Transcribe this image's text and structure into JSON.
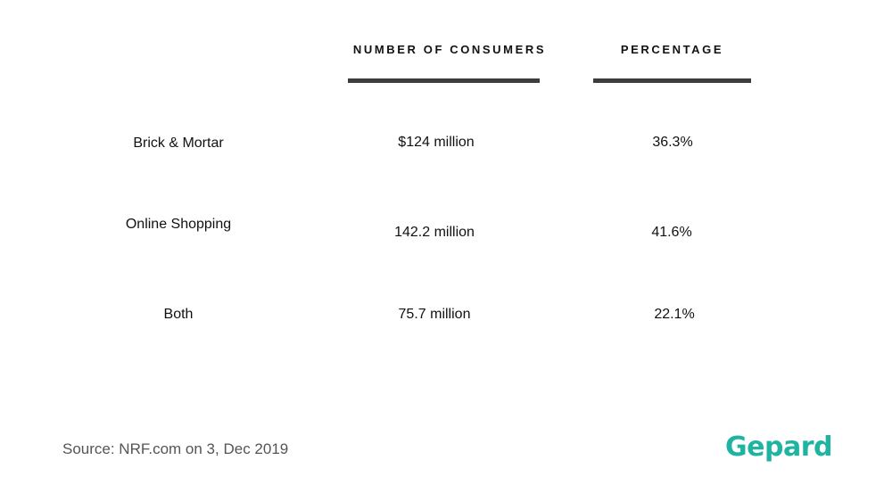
{
  "chart_data": {
    "type": "table",
    "columns": [
      "NUMBER OF CONSUMERS",
      "PERCENTAGE"
    ],
    "rows": [
      {
        "label": "Brick & Mortar",
        "consumers": "$124 million",
        "percentage": "36.3%"
      },
      {
        "label": "Online Shopping",
        "consumers": "142.2 million",
        "percentage": "41.6%"
      },
      {
        "label": "Both",
        "consumers": "75.7 million",
        "percentage": "22.1%"
      }
    ]
  },
  "source": "Source: NRF.com on 3, Dec 2019",
  "brand": {
    "name": "Gepard",
    "color": "#1fb3a1"
  },
  "colors": {
    "header_rule": "#3d3d3d",
    "text": "#111111",
    "source": "#555555"
  }
}
